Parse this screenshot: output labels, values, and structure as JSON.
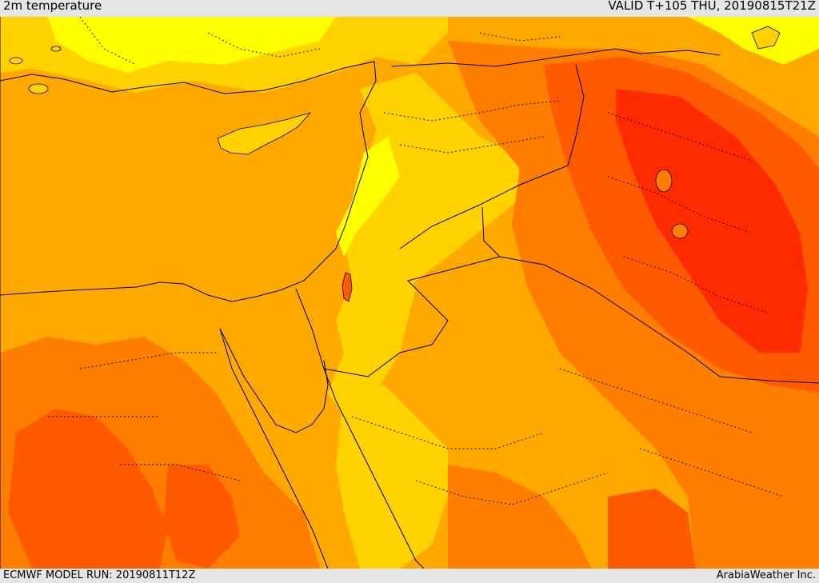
{
  "header": {
    "title": "2m temperature",
    "valid": "VALID T+105 THU, 20190815T21Z"
  },
  "footer": {
    "model_run": "ECMWF MODEL RUN: 20190811T12Z",
    "credit": "ArabiaWeather Inc."
  },
  "palette": {
    "yellow": "#ffff00",
    "light_orange": "#ffd200",
    "orange": "#ffa800",
    "dark_orange": "#ff7e00",
    "red_orange": "#ff5a00",
    "red": "#ff2a00"
  }
}
